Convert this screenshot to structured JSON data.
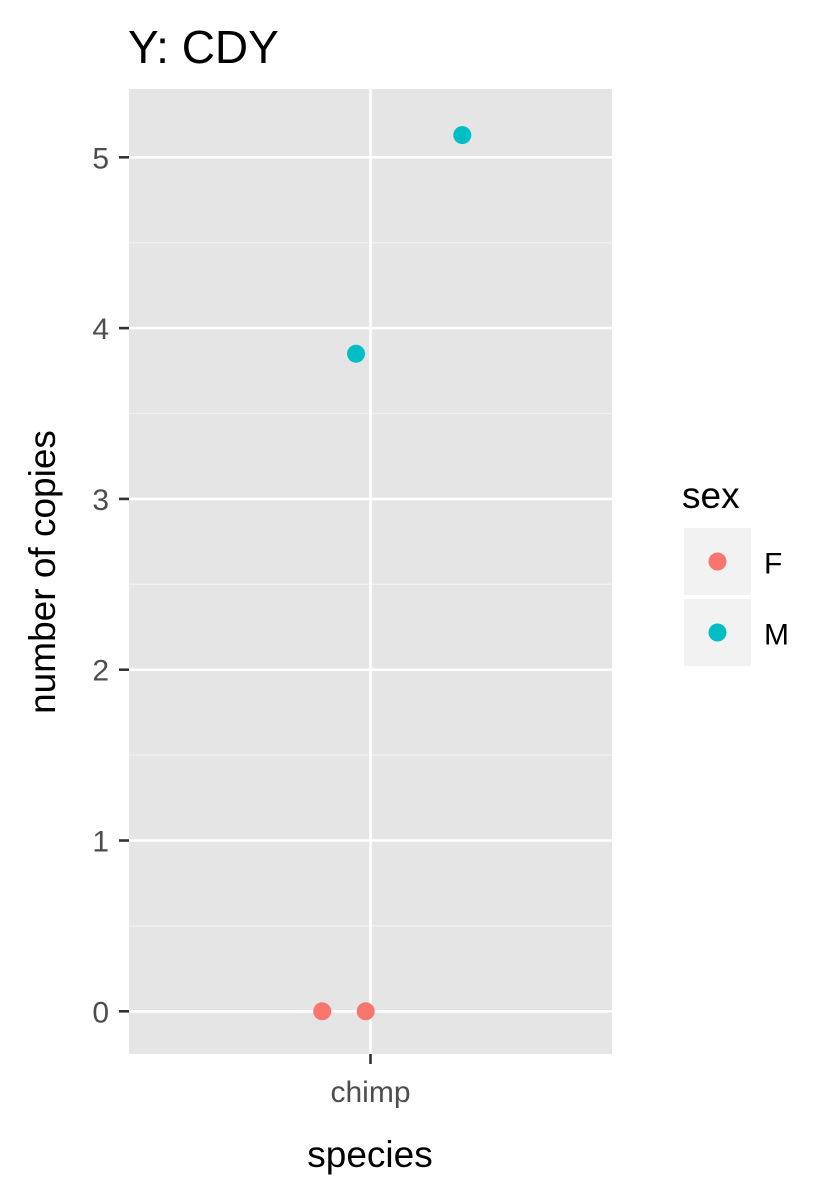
{
  "chart_data": {
    "type": "scatter",
    "title": "Y: CDY",
    "xlabel": "species",
    "ylabel": "number of copies",
    "categories": [
      "chimp"
    ],
    "ylim": [
      -0.25,
      5.4
    ],
    "y_ticks": [
      0,
      1,
      2,
      3,
      4,
      5
    ],
    "grid": true,
    "legend": {
      "title": "sex",
      "position": "right"
    },
    "series": [
      {
        "name": "F",
        "color": "#F8766D",
        "points": [
          {
            "category": "chimp",
            "jitter": -0.1,
            "y": 0
          },
          {
            "category": "chimp",
            "jitter": -0.01,
            "y": 0
          }
        ]
      },
      {
        "name": "M",
        "color": "#00BFC4",
        "points": [
          {
            "category": "chimp",
            "jitter": -0.03,
            "y": 3.85
          },
          {
            "category": "chimp",
            "jitter": 0.19,
            "y": 5.13
          }
        ]
      }
    ]
  }
}
